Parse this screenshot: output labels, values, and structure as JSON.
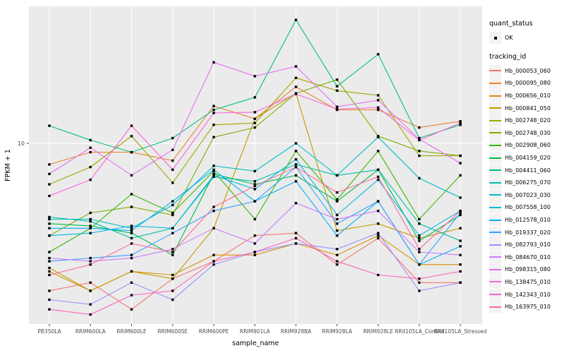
{
  "chart_data": {
    "type": "line",
    "title": "",
    "xlabel": "sample_name",
    "ylabel": "FPKM + 1",
    "y_scale": "log10",
    "y_tick_labels": [
      "10"
    ],
    "y_tick_values": [
      10
    ],
    "ylim_approx": [
      1.8,
      36
    ],
    "grid": "major-on",
    "panel_bg": "#EBEBEB",
    "gridline_color": "#FFFFFF",
    "marker": "small-black-square",
    "legend_position": "right",
    "categories": [
      "PB350LA",
      "RRIM600LA",
      "RRIM600LE",
      "RRIM600SE",
      "RRIM600PE",
      "RRIM901LA",
      "RRIM928BA",
      "RRIM928LA",
      "RRIM928LE",
      "RRII105LA_Control",
      "RRII105LA_Stressed"
    ],
    "legend": {
      "quant_status_title": "quant_status",
      "quant_status_items": [
        "OK"
      ],
      "tracking_id_title": "tracking_id"
    },
    "series": [
      {
        "name": "Hb_000053_060",
        "color": "#F8766D",
        "values": [
          2.5,
          2.7,
          2.1,
          2.8,
          3.3,
          4.2,
          4.3,
          3.2,
          4.1,
          2.7,
          2.7
        ]
      },
      {
        "name": "Hb_000095_080",
        "color": "#EA8331",
        "values": [
          8.2,
          9.2,
          9.2,
          8.5,
          14.2,
          12.6,
          17.0,
          13.7,
          13.7,
          11.6,
          12.3
        ]
      },
      {
        "name": "Hb_000656_010",
        "color": "#D89000",
        "values": [
          3.1,
          2.5,
          3.0,
          2.9,
          3.5,
          3.5,
          3.9,
          3.5,
          4.2,
          3.2,
          3.2
        ]
      },
      {
        "name": "Hb_000841_050",
        "color": "#C09B00",
        "values": [
          3.0,
          2.5,
          3.0,
          2.8,
          4.5,
          12.6,
          16.0,
          4.4,
          4.7,
          4.1,
          4.5
        ]
      },
      {
        "name": "Hb_002748_020",
        "color": "#A3A500",
        "values": [
          6.8,
          8.0,
          10.7,
          6.9,
          11.9,
          12.1,
          18.5,
          16.4,
          15.7,
          8.9,
          8.9
        ]
      },
      {
        "name": "Hb_002748_030",
        "color": "#7CAE00",
        "values": [
          4.2,
          5.2,
          5.5,
          5.1,
          10.6,
          11.6,
          16.0,
          18.2,
          10.7,
          9.3,
          8.9
        ]
      },
      {
        "name": "Hb_002908_060",
        "color": "#39B600",
        "values": [
          3.6,
          4.5,
          6.2,
          5.2,
          7.7,
          4.9,
          9.3,
          5.9,
          9.3,
          4.9,
          7.4
        ]
      },
      {
        "name": "Hb_004159_020",
        "color": "#00BB4E",
        "values": [
          4.7,
          4.6,
          4.3,
          3.5,
          7.5,
          6.8,
          7.4,
          5.8,
          7.8,
          4.0,
          5.1
        ]
      },
      {
        "name": "Hb_004411_060",
        "color": "#00BF7D",
        "values": [
          11.8,
          10.3,
          9.2,
          10.5,
          13.7,
          15.4,
          31.9,
          17.1,
          23.1,
          10.5,
          11.9
        ]
      },
      {
        "name": "Hb_006275_070",
        "color": "#00C1A3",
        "values": [
          5.0,
          4.8,
          4.1,
          4.5,
          7.3,
          7.0,
          8.2,
          7.4,
          7.8,
          4.7,
          4.0
        ]
      },
      {
        "name": "Hb_007023_030",
        "color": "#00BFC4",
        "values": [
          4.9,
          4.9,
          4.5,
          5.6,
          8.1,
          7.7,
          10.0,
          7.4,
          10.6,
          7.2,
          6.0
        ]
      },
      {
        "name": "Hb_007558_100",
        "color": "#00BAE0",
        "values": [
          4.2,
          4.3,
          4.6,
          4.5,
          7.4,
          6.5,
          8.6,
          5.1,
          7.1,
          4.2,
          5.3
        ]
      },
      {
        "name": "Hb_012578_010",
        "color": "#00B0F6",
        "values": [
          4.5,
          4.5,
          4.4,
          5.8,
          7.8,
          5.8,
          7.0,
          4.2,
          5.8,
          3.2,
          3.8
        ]
      },
      {
        "name": "Hb_019337_020",
        "color": "#35A2FF",
        "values": [
          3.3,
          3.4,
          3.5,
          4.3,
          5.3,
          5.8,
          8.0,
          4.7,
          5.8,
          3.2,
          5.2
        ]
      },
      {
        "name": "Hb_082793_010",
        "color": "#9590FF",
        "values": [
          2.3,
          2.2,
          2.7,
          2.3,
          3.2,
          3.6,
          3.9,
          3.7,
          4.3,
          2.5,
          2.7
        ]
      },
      {
        "name": "Hb_084670_010",
        "color": "#C77CFF",
        "values": [
          3.4,
          3.3,
          3.4,
          3.7,
          4.5,
          3.9,
          5.7,
          4.9,
          5.3,
          3.6,
          3.5
        ]
      },
      {
        "name": "Hb_098315_080",
        "color": "#E76BF3",
        "values": [
          7.5,
          9.6,
          7.4,
          9.4,
          21.4,
          18.8,
          20.6,
          14.1,
          15.0,
          10.4,
          8.3
        ]
      },
      {
        "name": "Hb_138475_010",
        "color": "#FA62DB",
        "values": [
          6.1,
          7.1,
          11.8,
          7.8,
          13.3,
          13.4,
          15.9,
          13.8,
          14.0,
          10.3,
          12.1
        ]
      },
      {
        "name": "Hb_142343_010",
        "color": "#FF62BC",
        "values": [
          2.1,
          2.0,
          2.4,
          2.5,
          3.3,
          3.6,
          4.1,
          3.3,
          2.9,
          2.8,
          3.0
        ]
      },
      {
        "name": "Hb_163975_010",
        "color": "#FF6A98",
        "values": [
          2.9,
          3.2,
          3.9,
          3.6,
          5.5,
          6.7,
          8.0,
          6.3,
          7.3,
          3.7,
          5.3
        ]
      }
    ]
  }
}
